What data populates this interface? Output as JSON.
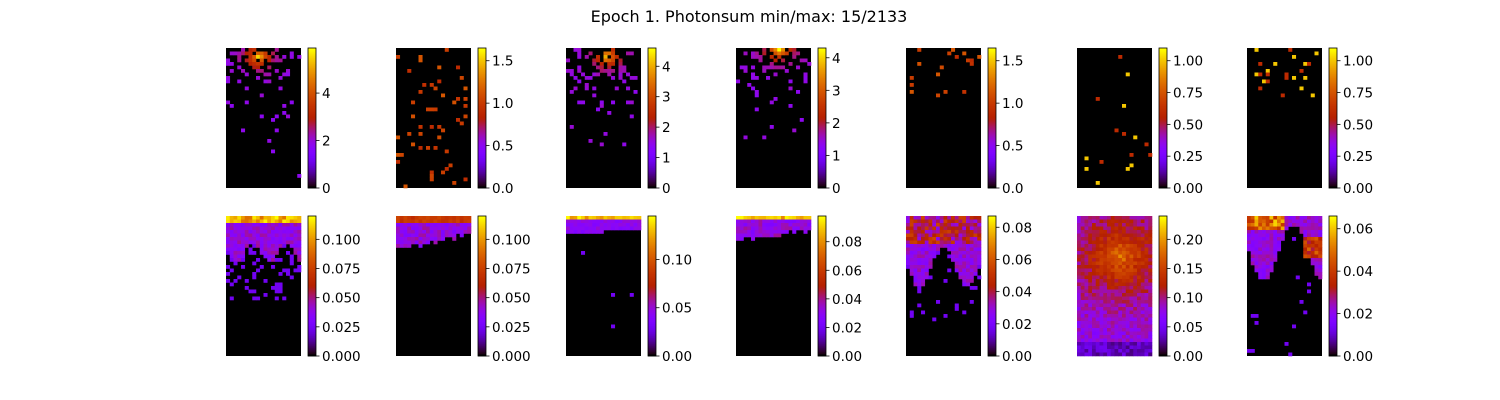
{
  "title": "Epoch 1. Photonsum min/max: 15/2133",
  "colormap": "gnuplot",
  "colors": {
    "background": "#ffffff",
    "zero_value": "#000000",
    "axis": "#000000"
  },
  "chart_data": [
    {
      "type": "heatmap",
      "row": 1,
      "panel": 1,
      "grid": [
        20,
        40
      ],
      "colorbar": {
        "min": 0,
        "max": 5.9,
        "ticks": [
          0,
          2,
          4
        ],
        "tick_labels": [
          "0",
          "2",
          "4"
        ]
      },
      "pattern": "bright spot near top center, decaying downward"
    },
    {
      "type": "heatmap",
      "row": 1,
      "panel": 2,
      "grid": [
        20,
        40
      ],
      "colorbar": {
        "min": 0,
        "max": 1.65,
        "ticks": [
          0,
          0.5,
          1.0,
          1.5
        ],
        "tick_labels": [
          "0.0",
          "0.5",
          "1.0",
          "1.5"
        ]
      },
      "pattern": "sparse scattered pixels"
    },
    {
      "type": "heatmap",
      "row": 1,
      "panel": 3,
      "grid": [
        20,
        40
      ],
      "colorbar": {
        "min": 0,
        "max": 4.6,
        "ticks": [
          0,
          1,
          2,
          3,
          4
        ],
        "tick_labels": [
          "0",
          "1",
          "2",
          "3",
          "4"
        ]
      },
      "pattern": "bright spot near top center, decaying downward"
    },
    {
      "type": "heatmap",
      "row": 1,
      "panel": 4,
      "grid": [
        20,
        40
      ],
      "colorbar": {
        "min": 0,
        "max": 4.3,
        "ticks": [
          0,
          1,
          2,
          3,
          4
        ],
        "tick_labels": [
          "0",
          "1",
          "2",
          "3",
          "4"
        ]
      },
      "pattern": "bright spot at top edge, decaying downward"
    },
    {
      "type": "heatmap",
      "row": 1,
      "panel": 5,
      "grid": [
        20,
        40
      ],
      "colorbar": {
        "min": 0,
        "max": 1.65,
        "ticks": [
          0,
          0.5,
          1.0,
          1.5
        ],
        "tick_labels": [
          "0.0",
          "0.5",
          "1.0",
          "1.5"
        ]
      },
      "pattern": "sparse pixels in upper region"
    },
    {
      "type": "heatmap",
      "row": 1,
      "panel": 6,
      "grid": [
        20,
        40
      ],
      "colorbar": {
        "min": 0,
        "max": 1.1,
        "ticks": [
          0,
          0.25,
          0.5,
          0.75,
          1.0
        ],
        "tick_labels": [
          "0.00",
          "0.25",
          "0.50",
          "0.75",
          "1.00"
        ]
      },
      "pattern": "very sparse pixels"
    },
    {
      "type": "heatmap",
      "row": 1,
      "panel": 7,
      "grid": [
        20,
        40
      ],
      "colorbar": {
        "min": 0,
        "max": 1.1,
        "ticks": [
          0,
          0.25,
          0.5,
          0.75,
          1.0
        ],
        "tick_labels": [
          "0.00",
          "0.25",
          "0.50",
          "0.75",
          "1.00"
        ]
      },
      "pattern": "sparse pixels in upper region"
    },
    {
      "type": "heatmap",
      "row": 2,
      "panel": 1,
      "grid": [
        20,
        40
      ],
      "colorbar": {
        "min": 0,
        "max": 0.12,
        "ticks": [
          0,
          0.025,
          0.05,
          0.075,
          0.1
        ],
        "tick_labels": [
          "0.000",
          "0.025",
          "0.050",
          "0.075",
          "0.100"
        ]
      },
      "pattern": "bright band at top, purple in upper third"
    },
    {
      "type": "heatmap",
      "row": 2,
      "panel": 2,
      "grid": [
        20,
        40
      ],
      "colorbar": {
        "min": 0,
        "max": 0.12,
        "ticks": [
          0,
          0.025,
          0.05,
          0.075,
          0.1
        ],
        "tick_labels": [
          "0.000",
          "0.025",
          "0.050",
          "0.075",
          "0.100"
        ]
      },
      "pattern": "reddish band at top, purple in upper quarter"
    },
    {
      "type": "heatmap",
      "row": 2,
      "panel": 3,
      "grid": [
        20,
        40
      ],
      "colorbar": {
        "min": 0,
        "max": 0.145,
        "ticks": [
          0,
          0.05,
          0.1
        ],
        "tick_labels": [
          "0.00",
          "0.05",
          "0.10"
        ]
      },
      "pattern": "thin bright band at top"
    },
    {
      "type": "heatmap",
      "row": 2,
      "panel": 4,
      "grid": [
        20,
        40
      ],
      "colorbar": {
        "min": 0,
        "max": 0.098,
        "ticks": [
          0,
          0.02,
          0.04,
          0.06,
          0.08
        ],
        "tick_labels": [
          "0.00",
          "0.02",
          "0.04",
          "0.06",
          "0.08"
        ]
      },
      "pattern": "thin bright band at top"
    },
    {
      "type": "heatmap",
      "row": 2,
      "panel": 5,
      "grid": [
        20,
        40
      ],
      "colorbar": {
        "min": 0,
        "max": 0.087,
        "ticks": [
          0,
          0.02,
          0.04,
          0.06,
          0.08
        ],
        "tick_labels": [
          "0.00",
          "0.02",
          "0.04",
          "0.06",
          "0.08"
        ]
      },
      "pattern": "purple/red upper half"
    },
    {
      "type": "heatmap",
      "row": 2,
      "panel": 6,
      "grid": [
        20,
        40
      ],
      "colorbar": {
        "min": 0,
        "max": 0.24,
        "ticks": [
          0,
          0.05,
          0.1,
          0.15,
          0.2
        ],
        "tick_labels": [
          "0.00",
          "0.05",
          "0.10",
          "0.15",
          "0.20"
        ]
      },
      "pattern": "diffuse glow filling most of panel"
    },
    {
      "type": "heatmap",
      "row": 2,
      "panel": 7,
      "grid": [
        20,
        40
      ],
      "colorbar": {
        "min": 0,
        "max": 0.066,
        "ticks": [
          0,
          0.02,
          0.04,
          0.06
        ],
        "tick_labels": [
          "0.00",
          "0.02",
          "0.04",
          "0.06"
        ]
      },
      "pattern": "bright upper left corner, purple upper half"
    }
  ]
}
